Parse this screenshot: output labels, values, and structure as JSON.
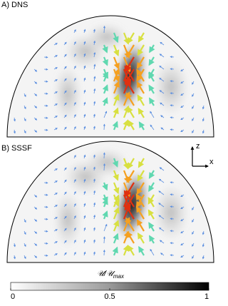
{
  "panels": [
    {
      "label": "A) DNS"
    },
    {
      "label": "B) SSSF"
    }
  ],
  "axes_icon": {
    "z": "z",
    "x": "x"
  },
  "colorbar": {
    "label_main": "𝒰/𝒰",
    "label_sub": "max",
    "range": [
      0,
      1
    ],
    "ticks": [
      0,
      0.5,
      1
    ]
  }
}
